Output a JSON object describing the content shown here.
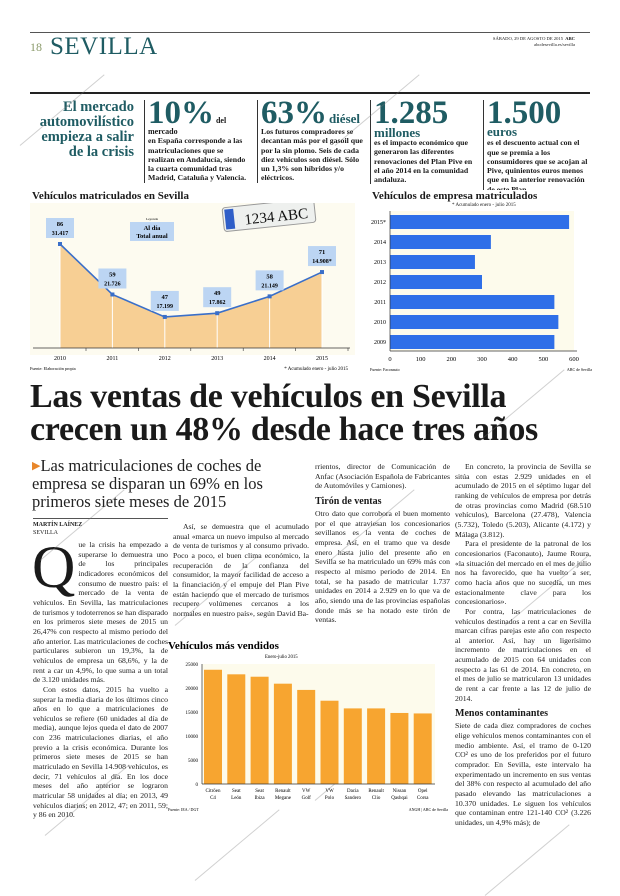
{
  "header": {
    "page_number": "18",
    "section": "SEVILLA",
    "date": "SÁBADO, 29 DE AGOSTO DE 2015",
    "brand": "ABC",
    "url": "abcdesevilla.es/sevilla"
  },
  "tagline": "El mercado automovilístico empieza a salir de la crisis",
  "stats": [
    {
      "big": "10%",
      "unit": "del mercado",
      "text": "en España corresponde a las matriculaciones que se realizan en Andalucía, siendo la cuarta comunidad tras Madrid, Cataluña y Valencia."
    },
    {
      "big": "63%",
      "unit": "diésel",
      "text": "Los futuros compradores se decantan más por el gasoil que por la sin plomo. Seis de cada diez vehículos son diésel. Sólo un 1,3% son híbridos y/o eléctricos."
    },
    {
      "big": "1.285",
      "unit": "millones",
      "text": "es el impacto económico que generaron las diferentes renovaciones del Plan Pive en el año 2014 en la comunidad andaluza."
    },
    {
      "big": "1.500",
      "unit": "euros",
      "text": "es el descuento actual con el que se premia a los consumidores que se acojan al Pive, quinientos euros menos que en la anterior renovación de este Plan."
    }
  ],
  "watermark": "ABC",
  "chart_data": [
    {
      "type": "line",
      "title": "Vehículos matriculados en Sevilla",
      "categories": [
        "2010",
        "2011",
        "2012",
        "2013",
        "2014",
        "2015"
      ],
      "series": [
        {
          "name": "Al día",
          "values": [
            86,
            59,
            47,
            49,
            58,
            71
          ]
        },
        {
          "name": "Total anual",
          "values": [
            "31.417",
            "21.726",
            "17.199",
            "17.862",
            "21.149",
            "14.908*"
          ]
        }
      ],
      "legend_title": "Leyenda",
      "legend": [
        "Al día",
        "Total anual"
      ],
      "note": "* Acumulado enero - julio 2015",
      "source": "Fuente: Elaboración propia",
      "plate": "1234 ABC",
      "colors": {
        "line": "#3a6fc9",
        "fill": "#f7cf94",
        "label_box": "#bcd5f3"
      }
    },
    {
      "type": "bar",
      "orientation": "horizontal",
      "title": "Vehículos de empresa matriculados",
      "subtitle": "* Acumulado enero - julio 2015",
      "categories": [
        "2015*",
        "2014",
        "2013",
        "2012",
        "2011",
        "2010",
        "2009"
      ],
      "values": [
        584,
        329,
        277,
        300,
        536,
        549,
        536
      ],
      "xlim": [
        0,
        600
      ],
      "xticks": [
        "0",
        "100",
        "200",
        "300",
        "400",
        "500",
        "600"
      ],
      "source": "Fuente: Faconauto",
      "credit": "ABC de Sevilla",
      "colors": {
        "bar": "#2f6fe8",
        "background": "#fdfbec"
      }
    },
    {
      "type": "bar",
      "title": "Vehículos más vendidos",
      "subtitle": "Enero-julio 2015",
      "categories": [
        [
          "Citröen",
          "C4"
        ],
        [
          "Seat",
          "León"
        ],
        [
          "Seat",
          "Ibiza"
        ],
        [
          "Renault",
          "Megane"
        ],
        [
          "VW",
          "Golf"
        ],
        [
          "VW",
          "Polo"
        ],
        [
          "Dacia",
          "Sandero"
        ],
        [
          "Renault",
          "Clio"
        ],
        [
          "Nissan",
          "Qashqai"
        ],
        [
          "Opel",
          "Corsa"
        ]
      ],
      "values": [
        23800,
        22850,
        22350,
        20900,
        19600,
        17350,
        15750,
        15750,
        14800,
        14700
      ],
      "ylim": [
        0,
        25000
      ],
      "yticks": [
        "0",
        "5000",
        "10000",
        "15000",
        "20000",
        "25000"
      ],
      "source": "Fuente: IEA / DGT",
      "credit": "ANGH | ABC de Sevilla",
      "colors": {
        "bar": "#f7a530",
        "background": "#fdfbec"
      }
    }
  ],
  "article": {
    "headline_1": "Las ventas de vehículos en Sevilla",
    "headline_2": "crecen un 48% desde hace tres años",
    "subhead": "Las matriculaciones de coches de empresa se disparan un 69% en los primeros siete meses de 2015",
    "author": "MARTÍN LAÍNEZ",
    "location": "SEVILLA",
    "dropcap": "Q",
    "col1": [
      "ue la crisis ha empezado a superarse lo demuestra uno de los principales indicadores económicos del consumo de nuestro país: el mercado de la venta de vehículos. En Sevilla, las matriculaciones de turismos y todoterrenos se han disparado en los primeros siete meses de 2015 un 26,47% con respecto al mismo periodo del año anterior. Las matriculaciones de coches particulares subieron un 19,3%, la de vehículos de empresa un 68,6%, y la de rent a car un 4,9%, lo que suma a un total de 3.120 unidades más.",
      "Con estos datos, 2015 ha vuelto a superar la media diaria de los últimos cinco años en lo que a matriculaciones de vehículos se refiere (60 unidades al día de media), aunque lejos queda el dato de 2007 con 236 matriculaciones diarias, el año previo a la crisis económica. Durante los primeros siete meses de 2015 se han matriculado en Sevilla 14.908 vehículos, es decir, 71 vehículos al día. En los doce meses del año anterior se lograron matricular 58 unidades al día; en 2013, 49 vehículos diarios; en 2012, 47; en 2011, 59; y 86 en 2010."
    ],
    "col2": [
      "Así, se demuestra que el acumulado anual «marca un nuevo impulso al mercado de venta de turismos y al consumo privado. Poco a poco, el buen clima económico, la recuperación de la confianza del consumidor, la mayor facilidad de acceso a la financiación y el empuje del Plan Pive están haciendo que el mercado de turismos recupere volúmenes cercanos a los normales en nuestro país», según David Ba-"
    ],
    "col3_intro": "rrientos, director de Comunicación de Anfac (Asociación Española de Fabricantes de Automóviles y Camiones).",
    "col3_heading": "Tirón de ventas",
    "col3_body": "Otro dato que corrobora el buen momento por el que atraviesan los concesionarios sevillanos es la venta de coches de empresa. Así, en el tramo que va desde enero hasta julio del presente año en Sevilla se ha matriculado un 69% más con respecto al mismo periodo de 2014. En total, se ha pasado de matricular 1.737 unidades en 2014 a 2.929 en lo que va de año, siendo una de las provincias españolas donde más se ha notado este tirón de ventas.",
    "col4": [
      "En concreto, la provincia de Sevilla se sitúa con estas 2.929 unidades en el acumulado de 2015 en el séptimo lugar del ranking de vehículos de empresa por detrás de otras provincias como Madrid (68.510 vehículos), Barcelona (27.478), Valencia (5.732), Toledo (5.203), Alicante (4.172) y Málaga (3.812).",
      "Para el presidente de la patronal de los concesionarios (Faconauto), Jaume Roura, «la situación del mercado en el mes de julio nos ha favorecido, que ha vuelto a ser, como hacía años que no sucedía, un mes estacionalmente clave para los concesionarios».",
      "Por contra, las matriculaciones de vehículos destinados a rent a car en Sevilla marcan cifras parejas este año con respecto al anterior. Así, hay un ligerísimo incremento de matriculaciones en el acumulado de 2015 con 64 unidades con respecto a las 61 de 2014. En concreto, en el mes de julio se matricularon 13 unidades de rent a car frente a las 12 de julio de 2014."
    ],
    "col4_heading": "Menos contaminantes",
    "col4_body": "Siete de cada diez compradores de coches elige vehículos menos contaminantes con el medio ambiente. Así, el tramo de 0-120 CO² es uno de los preferidos por el futuro comprador. En Sevilla, este intervalo ha experimentado un incremento en sus ventas del 38% con respecto al acumulado del año pasado elevando las matriculaciones a 10.370 unidades. Le siguen los vehículos que contaminan entre 121-140 CO² (3.226 unidades, un 4,9% más); de"
  }
}
